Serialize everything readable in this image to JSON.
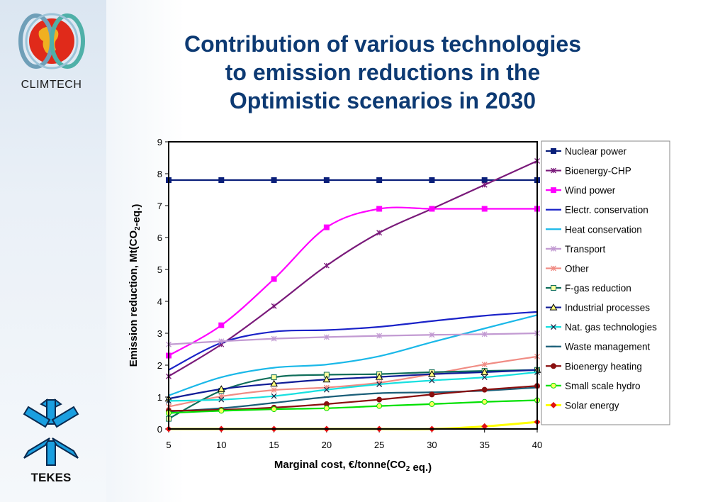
{
  "branding": {
    "top_logo_text": "CLIMTECH",
    "bottom_logo_text": "TEKES"
  },
  "title_lines": [
    "Contribution of various technologies",
    "to emission reductions in the",
    "Optimistic scenarios in 2030"
  ],
  "chart_data": {
    "type": "line",
    "title": "Contribution of various technologies to emission reductions in the Optimistic scenarios in 2030",
    "xlabel": "Marginal cost, €/tonne(CO2 eq.)",
    "ylabel": "Emission reduction, Mt(CO2-eq.)",
    "x": [
      5,
      10,
      15,
      20,
      25,
      30,
      35,
      40
    ],
    "xlim": [
      5,
      40
    ],
    "ylim": [
      0,
      9
    ],
    "xticks": [
      5,
      10,
      15,
      20,
      25,
      30,
      35,
      40
    ],
    "yticks": [
      0,
      1,
      2,
      3,
      4,
      5,
      6,
      7,
      8,
      9
    ],
    "grid": false,
    "legend_position": "right",
    "series": [
      {
        "name": "Nuclear power",
        "color": "#0a1f7a",
        "marker": "square",
        "values": [
          7.8,
          7.8,
          7.8,
          7.8,
          7.8,
          7.8,
          7.8,
          7.8
        ]
      },
      {
        "name": "Bioenergy-CHP",
        "color": "#7a1a7a",
        "marker": "star",
        "values": [
          1.65,
          2.65,
          3.85,
          5.12,
          6.15,
          6.9,
          7.65,
          8.4
        ]
      },
      {
        "name": "Wind power",
        "color": "#ff00ff",
        "marker": "square",
        "values": [
          2.3,
          3.25,
          4.7,
          6.32,
          6.9,
          6.9,
          6.9,
          6.9
        ]
      },
      {
        "name": "Electr. conservation",
        "color": "#1a22c8",
        "marker": "none",
        "values": [
          1.85,
          2.7,
          3.05,
          3.1,
          3.2,
          3.38,
          3.55,
          3.67
        ]
      },
      {
        "name": "Heat conservation",
        "color": "#1ab8e8",
        "marker": "none",
        "values": [
          1.05,
          1.62,
          1.92,
          2.02,
          2.28,
          2.72,
          3.15,
          3.57
        ]
      },
      {
        "name": "Transport",
        "color": "#c29ad2",
        "marker": "star",
        "values": [
          2.65,
          2.75,
          2.83,
          2.88,
          2.92,
          2.95,
          2.97,
          3.0
        ]
      },
      {
        "name": "Other",
        "color": "#f08c84",
        "marker": "star",
        "values": [
          0.7,
          1.02,
          1.22,
          1.3,
          1.45,
          1.72,
          2.02,
          2.27
        ]
      },
      {
        "name": "F-gas reduction",
        "color": "#0f6e5a",
        "marker": "square",
        "values": [
          0.32,
          1.2,
          1.62,
          1.7,
          1.72,
          1.78,
          1.82,
          1.85
        ]
      },
      {
        "name": "Industrial processes",
        "color": "#101c96",
        "marker": "triangle",
        "values": [
          0.95,
          1.25,
          1.42,
          1.55,
          1.63,
          1.72,
          1.78,
          1.85
        ]
      },
      {
        "name": "Nat. gas technologies",
        "color": "#18e0e0",
        "marker": "x",
        "values": [
          0.88,
          0.92,
          1.03,
          1.23,
          1.4,
          1.52,
          1.62,
          1.78
        ]
      },
      {
        "name": "Waste management",
        "color": "#1a5e78",
        "marker": "dash",
        "values": [
          0.55,
          0.65,
          0.82,
          1.0,
          1.12,
          1.15,
          1.2,
          1.3
        ]
      },
      {
        "name": "Bioenergy heating",
        "color": "#8a0f0f",
        "marker": "circle",
        "values": [
          0.57,
          0.6,
          0.67,
          0.78,
          0.92,
          1.08,
          1.23,
          1.35
        ]
      },
      {
        "name": "Small scale hydro",
        "color": "#00e000",
        "marker": "circle",
        "values": [
          0.5,
          0.57,
          0.62,
          0.65,
          0.72,
          0.78,
          0.85,
          0.9
        ]
      },
      {
        "name": "Solar energy",
        "color": "#ffff00",
        "marker": "diamond",
        "markerColor": "#e01010",
        "values": [
          0.0,
          0.0,
          0.0,
          0.0,
          0.0,
          0.0,
          0.08,
          0.22
        ]
      }
    ]
  }
}
